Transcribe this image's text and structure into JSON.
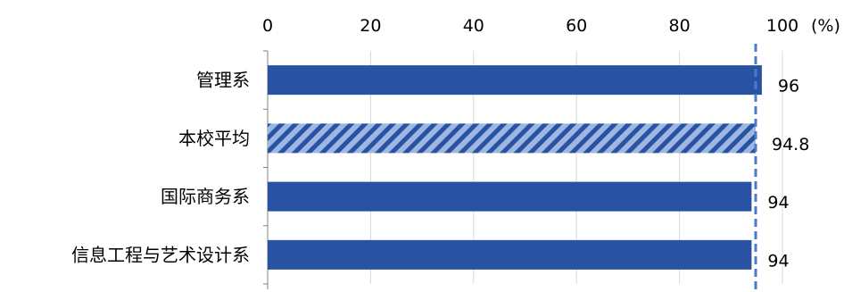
{
  "chart_data": {
    "type": "bar",
    "orientation": "horizontal",
    "categories": [
      "管理系",
      "本校平均",
      "国际商务系",
      "信息工程与艺术设计系"
    ],
    "values": [
      96,
      94.8,
      94,
      94
    ],
    "data_labels": [
      "96",
      "94.8",
      "94",
      "94"
    ],
    "xlim": [
      0,
      100
    ],
    "x_ticks": [
      "0",
      "20",
      "40",
      "60",
      "80",
      "100"
    ],
    "unit": "(%)",
    "reference_line": 94.8,
    "highlight_category": "本校平均",
    "colors": {
      "bar": "#2952A3",
      "hatch_light": "#9DB7E0",
      "reference_line": "#4A7BC8"
    },
    "grid": true,
    "axis_position": "top"
  }
}
